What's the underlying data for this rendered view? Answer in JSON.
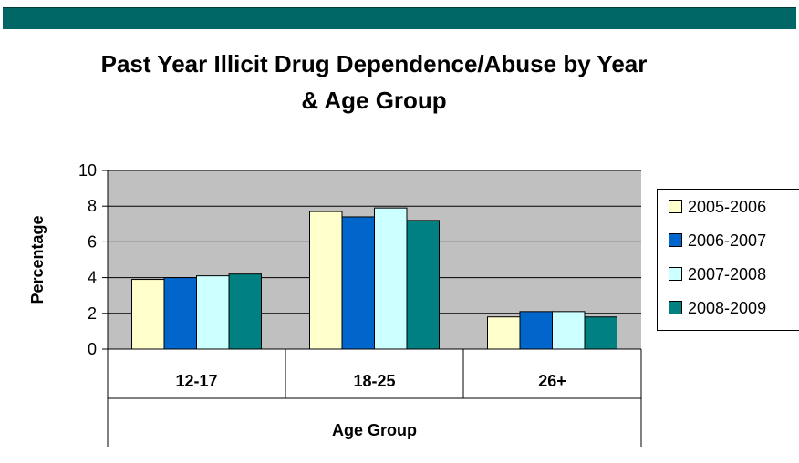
{
  "title_line1": "Past Year Illicit Drug Dependence/Abuse by Year",
  "title_line2": "& Age Group",
  "chart_data": {
    "type": "bar",
    "title": "Past Year Illicit Drug Dependence/Abuse by Year & Age Group",
    "xlabel": "Age Group",
    "ylabel": "Percentage",
    "categories": [
      "12-17",
      "18-25",
      "26+"
    ],
    "ylim": [
      0,
      10
    ],
    "yticks": [
      "0",
      "2",
      "4",
      "6",
      "8",
      "10"
    ],
    "grid": true,
    "legend_position": "right",
    "series": [
      {
        "name": "2005-2006",
        "color": "#FFFFCC",
        "values": [
          3.9,
          7.7,
          1.8
        ]
      },
      {
        "name": "2006-2007",
        "color": "#0066CC",
        "values": [
          4.0,
          7.4,
          2.1
        ]
      },
      {
        "name": "2007-2008",
        "color": "#CCFFFF",
        "values": [
          4.1,
          7.9,
          2.1
        ]
      },
      {
        "name": "2008-2009",
        "color": "#008080",
        "values": [
          4.2,
          7.2,
          1.8
        ]
      }
    ]
  }
}
